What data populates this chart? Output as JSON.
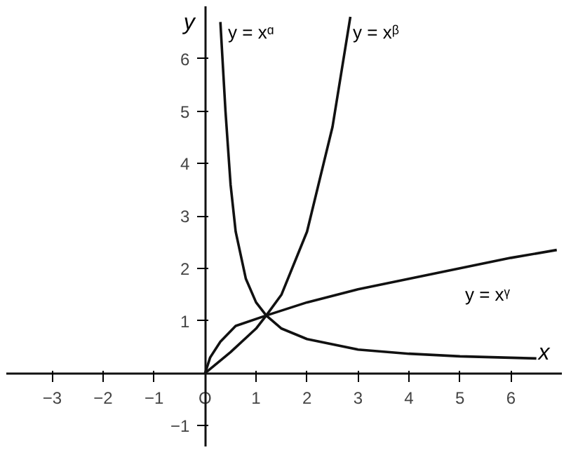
{
  "chart_data": {
    "type": "line",
    "xlabel": "x",
    "ylabel": "y",
    "xlim": [
      -3.9,
      7.0
    ],
    "ylim": [
      -1.4,
      7.0
    ],
    "xticks": [
      -3,
      -2,
      -1,
      {
        "value": 0,
        "label": "O"
      },
      1,
      2,
      3,
      4,
      5,
      6
    ],
    "yticks": [
      -1,
      1,
      2,
      3,
      4,
      5,
      6
    ],
    "grid": false,
    "marker": "none",
    "line_style": "solid",
    "series": [
      {
        "color": "#111111",
        "x": [
          0.3,
          0.4,
          0.5,
          0.6,
          0.8,
          1.0,
          1.2,
          1.5,
          2.0,
          3.0,
          4.0,
          5.0,
          6.5
        ],
        "values": [
          6.7,
          5.0,
          3.6,
          2.7,
          1.8,
          1.35,
          1.1,
          0.85,
          0.65,
          0.45,
          0.37,
          0.32,
          0.28
        ]
      },
      {
        "color": "#111111",
        "x": [
          0,
          0.5,
          1.0,
          1.2,
          1.5,
          2.0,
          2.5,
          2.85
        ],
        "values": [
          0,
          0.4,
          0.85,
          1.1,
          1.5,
          2.7,
          4.7,
          6.8
        ]
      },
      {
        "color": "#111111",
        "x": [
          0,
          0.1,
          0.3,
          0.6,
          1.2,
          2.0,
          3.0,
          4.0,
          5.0,
          6.0,
          6.9
        ],
        "values": [
          0,
          0.3,
          0.6,
          0.9,
          1.1,
          1.35,
          1.6,
          1.8,
          2.0,
          2.2,
          2.35
        ]
      }
    ],
    "annotations": [
      "y = xᵅ",
      "y = xᵝ",
      "y = xᵞ"
    ]
  }
}
